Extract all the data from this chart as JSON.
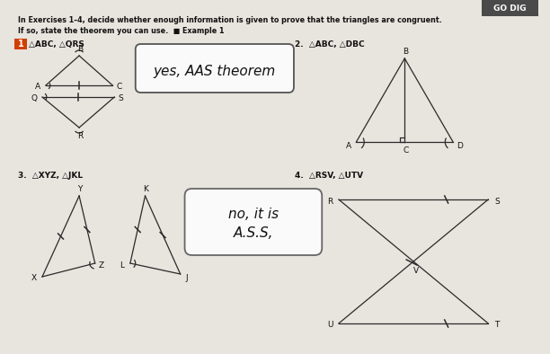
{
  "bg_color": "#e8e4de",
  "header_bg": "#4a4a4a",
  "header_text": "GO DIG",
  "title_line1": "In Exercises 1–4, decide whether enough information is given to prove that the triangles are congruent.",
  "title_line2": "If so, state the theorem you can use.  ■ Example 1",
  "bubble1_text": "yes, AAS theorem",
  "bubble2_text": "no, it is\nA.S.S,",
  "line_color": "#2a2a2a",
  "font_color": "#111111",
  "bubble_color": "#ffffff",
  "num1_bg": "#d04000"
}
